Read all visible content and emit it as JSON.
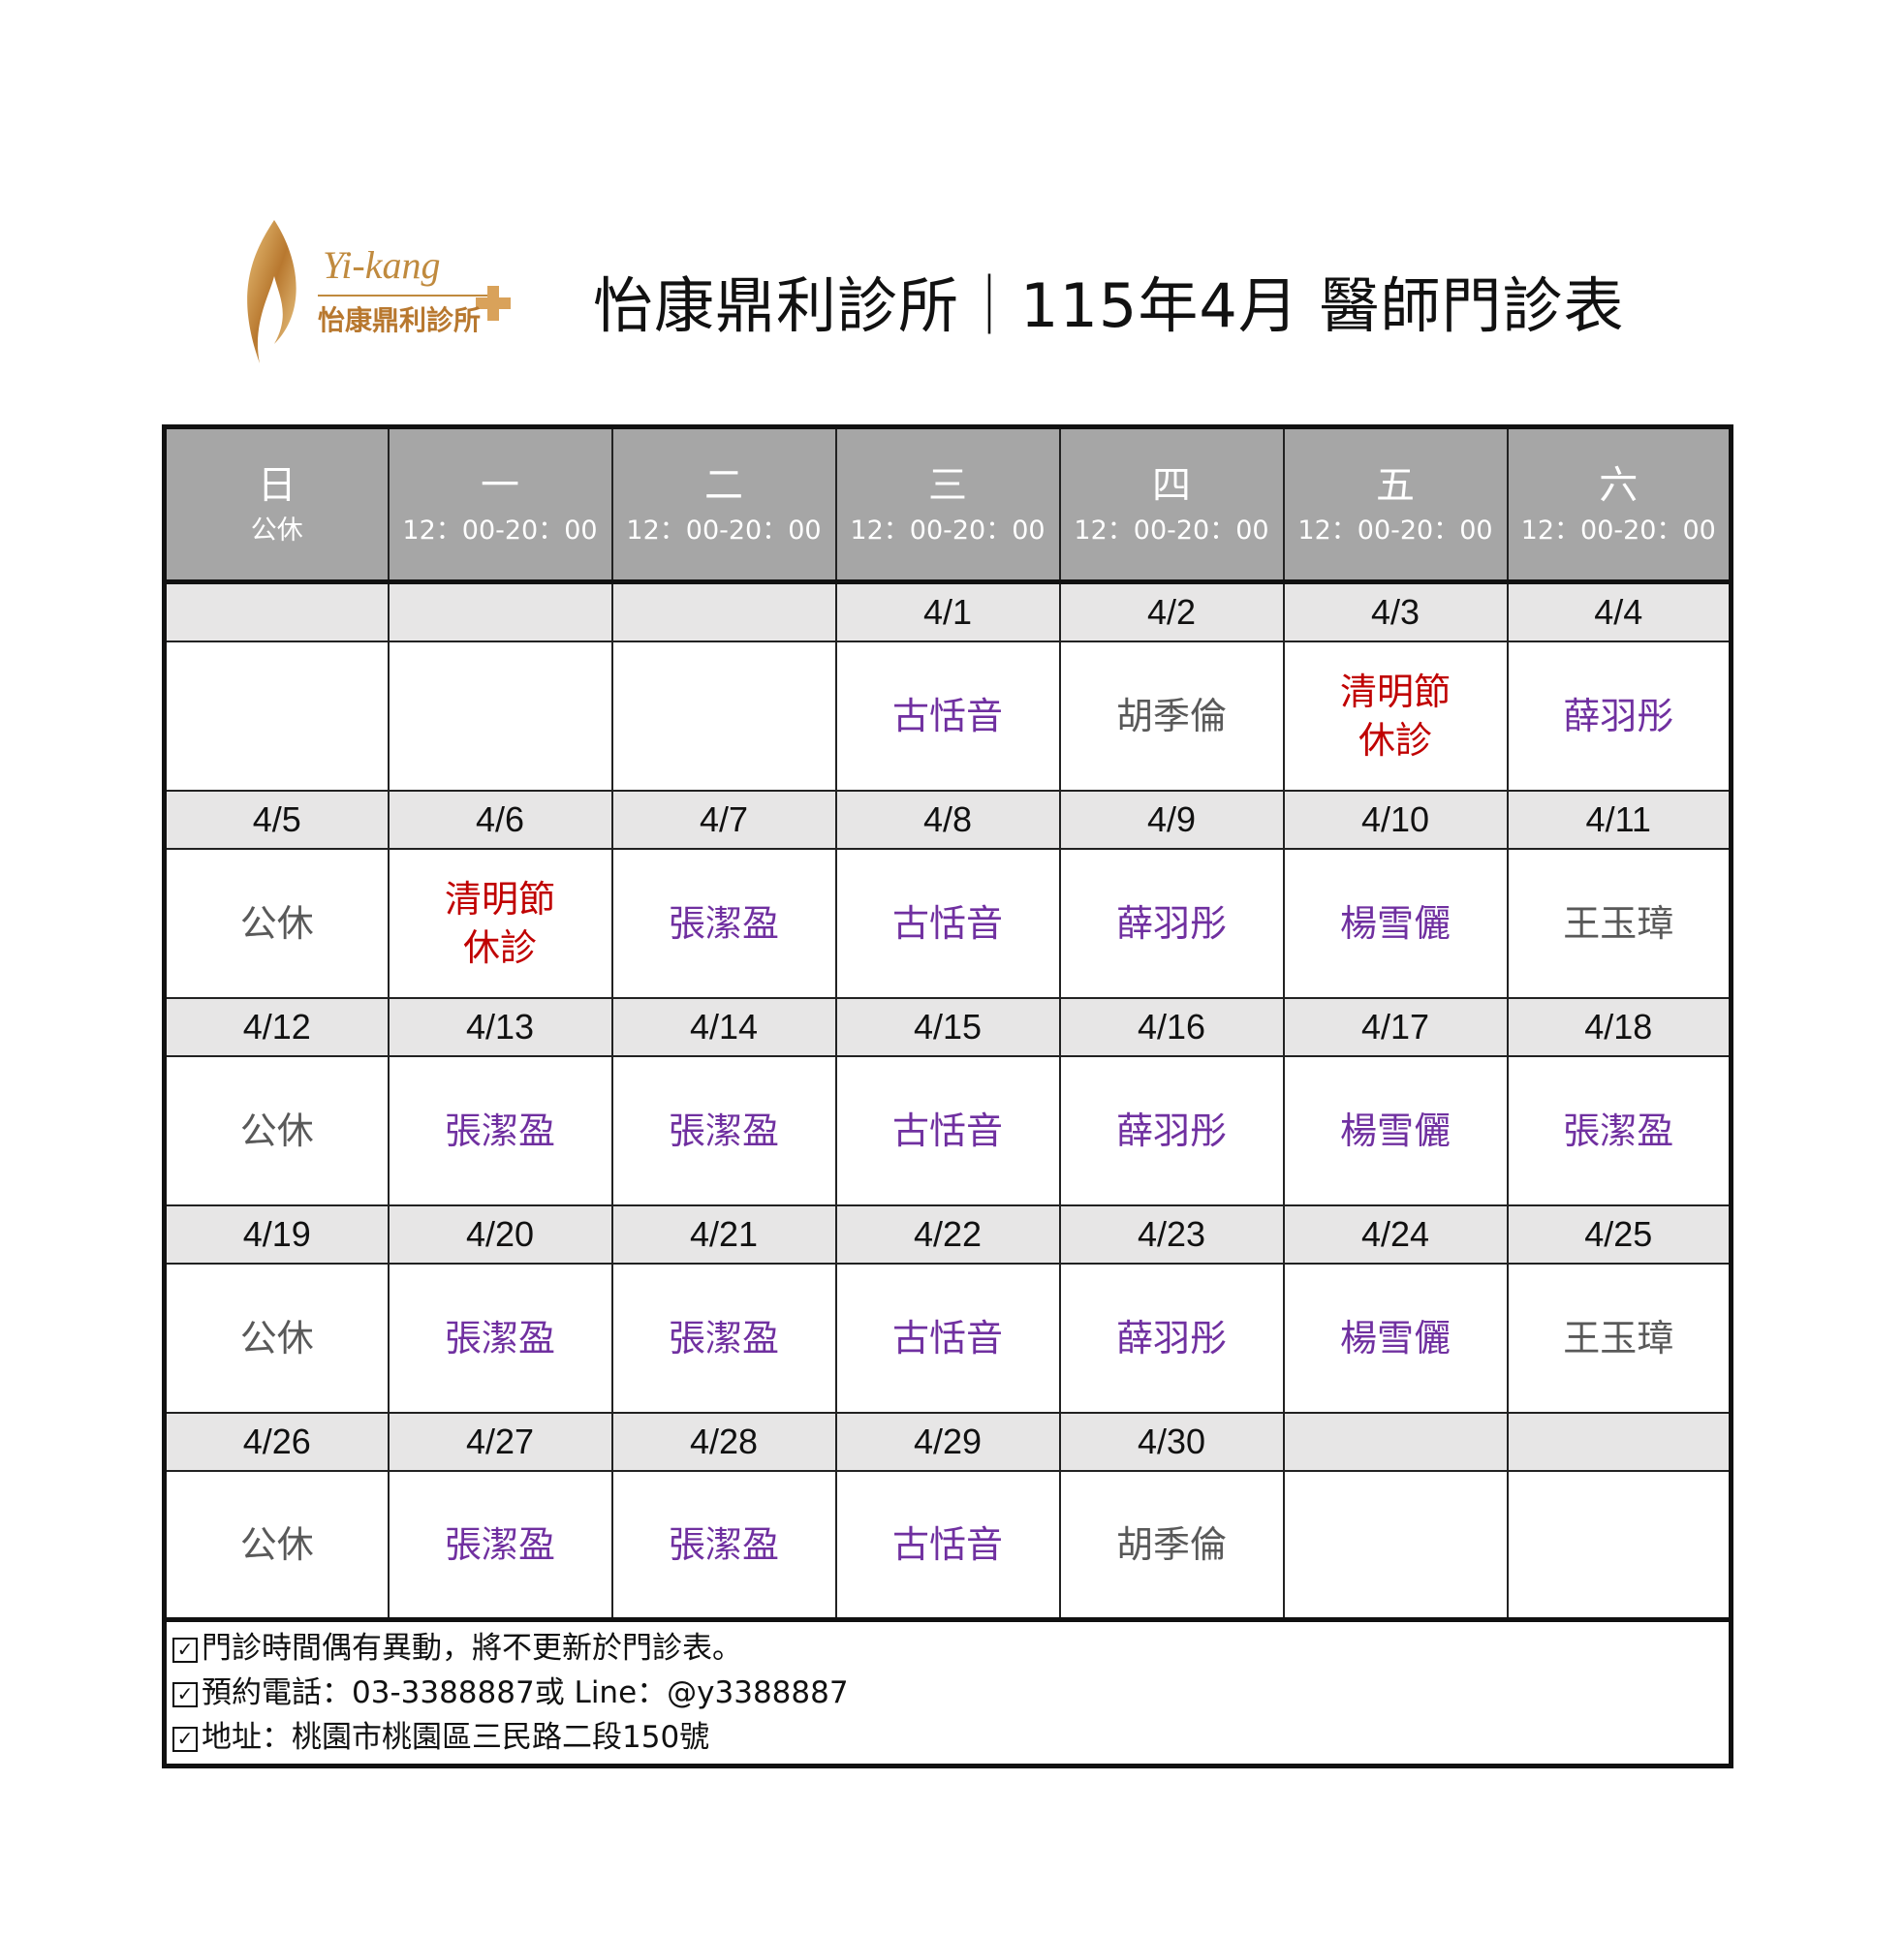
{
  "logo": {
    "text_en": "Yi-kang",
    "text_zh": "怡康鼎利診所"
  },
  "title": "怡康鼎利診所｜115年4月 醫師門診表",
  "colors": {
    "header_bg": "#a6a6a6",
    "date_bg": "#e7e6e6",
    "doctor": "#7030a0",
    "holiday": "#c00000",
    "neutral": "#595959"
  },
  "header": [
    {
      "weekday": "日",
      "hours": "公休"
    },
    {
      "weekday": "一",
      "hours": "12：00-20：00"
    },
    {
      "weekday": "二",
      "hours": "12：00-20：00"
    },
    {
      "weekday": "三",
      "hours": "12：00-20：00"
    },
    {
      "weekday": "四",
      "hours": "12：00-20：00"
    },
    {
      "weekday": "五",
      "hours": "12：00-20：00"
    },
    {
      "weekday": "六",
      "hours": "12：00-20：00"
    }
  ],
  "weeks": [
    [
      {
        "date": "",
        "name": "",
        "kind": ""
      },
      {
        "date": "",
        "name": "",
        "kind": ""
      },
      {
        "date": "",
        "name": "",
        "kind": ""
      },
      {
        "date": "4/1",
        "name": "古恬音",
        "kind": "doctor"
      },
      {
        "date": "4/2",
        "name": "胡季倫",
        "kind": "neutral"
      },
      {
        "date": "4/3",
        "name": "清明節\n休診",
        "kind": "holiday"
      },
      {
        "date": "4/4",
        "name": "薛羽彤",
        "kind": "doctor"
      }
    ],
    [
      {
        "date": "4/5",
        "name": "公休",
        "kind": "neutral"
      },
      {
        "date": "4/6",
        "name": "清明節\n休診",
        "kind": "holiday"
      },
      {
        "date": "4/7",
        "name": "張潔盈",
        "kind": "doctor"
      },
      {
        "date": "4/8",
        "name": "古恬音",
        "kind": "doctor"
      },
      {
        "date": "4/9",
        "name": "薛羽彤",
        "kind": "doctor"
      },
      {
        "date": "4/10",
        "name": "楊雪儷",
        "kind": "doctor"
      },
      {
        "date": "4/11",
        "name": "王玉璋",
        "kind": "neutral"
      }
    ],
    [
      {
        "date": "4/12",
        "name": "公休",
        "kind": "neutral"
      },
      {
        "date": "4/13",
        "name": "張潔盈",
        "kind": "doctor"
      },
      {
        "date": "4/14",
        "name": "張潔盈",
        "kind": "doctor"
      },
      {
        "date": "4/15",
        "name": "古恬音",
        "kind": "doctor"
      },
      {
        "date": "4/16",
        "name": "薛羽彤",
        "kind": "doctor"
      },
      {
        "date": "4/17",
        "name": "楊雪儷",
        "kind": "doctor"
      },
      {
        "date": "4/18",
        "name": "張潔盈",
        "kind": "doctor"
      }
    ],
    [
      {
        "date": "4/19",
        "name": "公休",
        "kind": "neutral"
      },
      {
        "date": "4/20",
        "name": "張潔盈",
        "kind": "doctor"
      },
      {
        "date": "4/21",
        "name": "張潔盈",
        "kind": "doctor"
      },
      {
        "date": "4/22",
        "name": "古恬音",
        "kind": "doctor"
      },
      {
        "date": "4/23",
        "name": "薛羽彤",
        "kind": "doctor"
      },
      {
        "date": "4/24",
        "name": "楊雪儷",
        "kind": "doctor"
      },
      {
        "date": "4/25",
        "name": "王玉璋",
        "kind": "neutral"
      }
    ],
    [
      {
        "date": "4/26",
        "name": "公休",
        "kind": "neutral"
      },
      {
        "date": "4/27",
        "name": "張潔盈",
        "kind": "doctor"
      },
      {
        "date": "4/28",
        "name": "張潔盈",
        "kind": "doctor"
      },
      {
        "date": "4/29",
        "name": "古恬音",
        "kind": "doctor"
      },
      {
        "date": "4/30",
        "name": "胡季倫",
        "kind": "neutral"
      },
      {
        "date": "",
        "name": "",
        "kind": ""
      },
      {
        "date": "",
        "name": "",
        "kind": ""
      }
    ]
  ],
  "notes": [
    "門診時間偶有異動，將不更新於門診表。",
    "預約電話：03-3388887或 Line：@y3388887",
    "地址：桃園市桃園區三民路二段150號"
  ]
}
